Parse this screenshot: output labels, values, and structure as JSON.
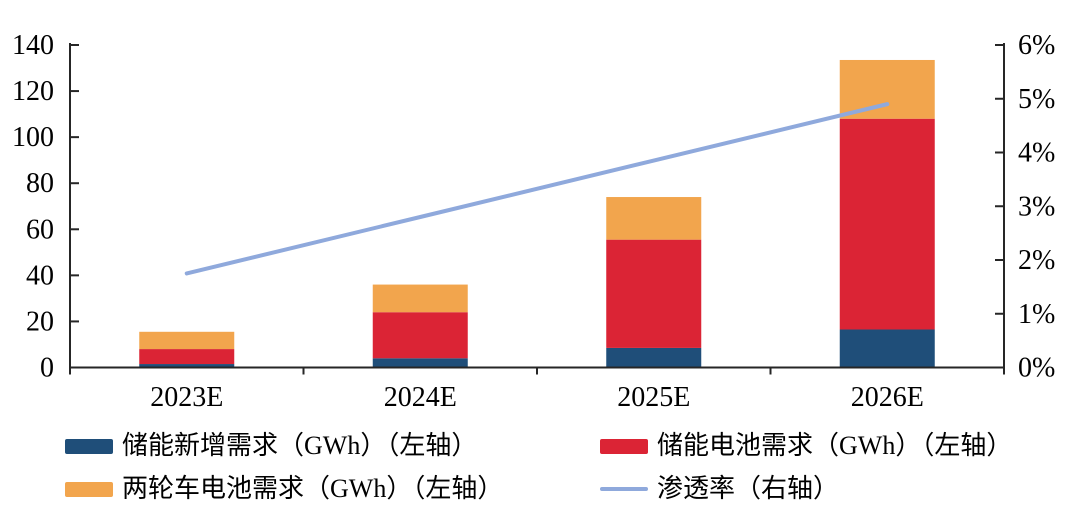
{
  "chart_data": {
    "type": "bar",
    "subtype": "stacked-bars-with-line-dual-axis",
    "title": "",
    "xlabel": "",
    "ylabel": "",
    "grid": false,
    "legend_position": "bottom",
    "categories": [
      "2023E",
      "2024E",
      "2025E",
      "2026E"
    ],
    "bar_series": [
      {
        "name": "储能新增需求（GWh）（左轴）",
        "color": "#1f4e79",
        "values": [
          1.5,
          4,
          8.5,
          16.5
        ]
      },
      {
        "name": "储能电池需求（GWh）（左轴）",
        "color": "#db2435",
        "values": [
          6.5,
          20,
          47,
          91.5
        ]
      },
      {
        "name": "两轮车电池需求（GWh）（左轴）",
        "color": "#f2a54d",
        "values": [
          7.5,
          12,
          18.5,
          25.5
        ]
      }
    ],
    "bar_totals": [
      15.5,
      36,
      74,
      133.5
    ],
    "line_series": {
      "name": "渗透率（右轴）",
      "color": "#8fa9dc",
      "unit": "%",
      "values": [
        1.75,
        2.8,
        3.85,
        4.9
      ]
    },
    "left_axis": {
      "min": 0,
      "max": 140,
      "step": 20,
      "tick_labels": [
        "0",
        "20",
        "40",
        "60",
        "80",
        "100",
        "120",
        "140"
      ]
    },
    "right_axis": {
      "min": 0,
      "max": 6,
      "step": 1,
      "tick_labels": [
        "0%",
        "1%",
        "2%",
        "3%",
        "4%",
        "5%",
        "6%"
      ]
    },
    "axis_color": "#262626"
  },
  "legend": {
    "items": [
      {
        "label": "储能新增需求（GWh）（左轴）",
        "color": "#1f4e79",
        "type": "bar"
      },
      {
        "label": "储能电池需求（GWh）（左轴）",
        "color": "#db2435",
        "type": "bar"
      },
      {
        "label": "两轮车电池需求（GWh）（左轴）",
        "color": "#f2a54d",
        "type": "bar"
      },
      {
        "label": "渗透率（右轴）",
        "color": "#8fa9dc",
        "type": "line"
      }
    ]
  }
}
